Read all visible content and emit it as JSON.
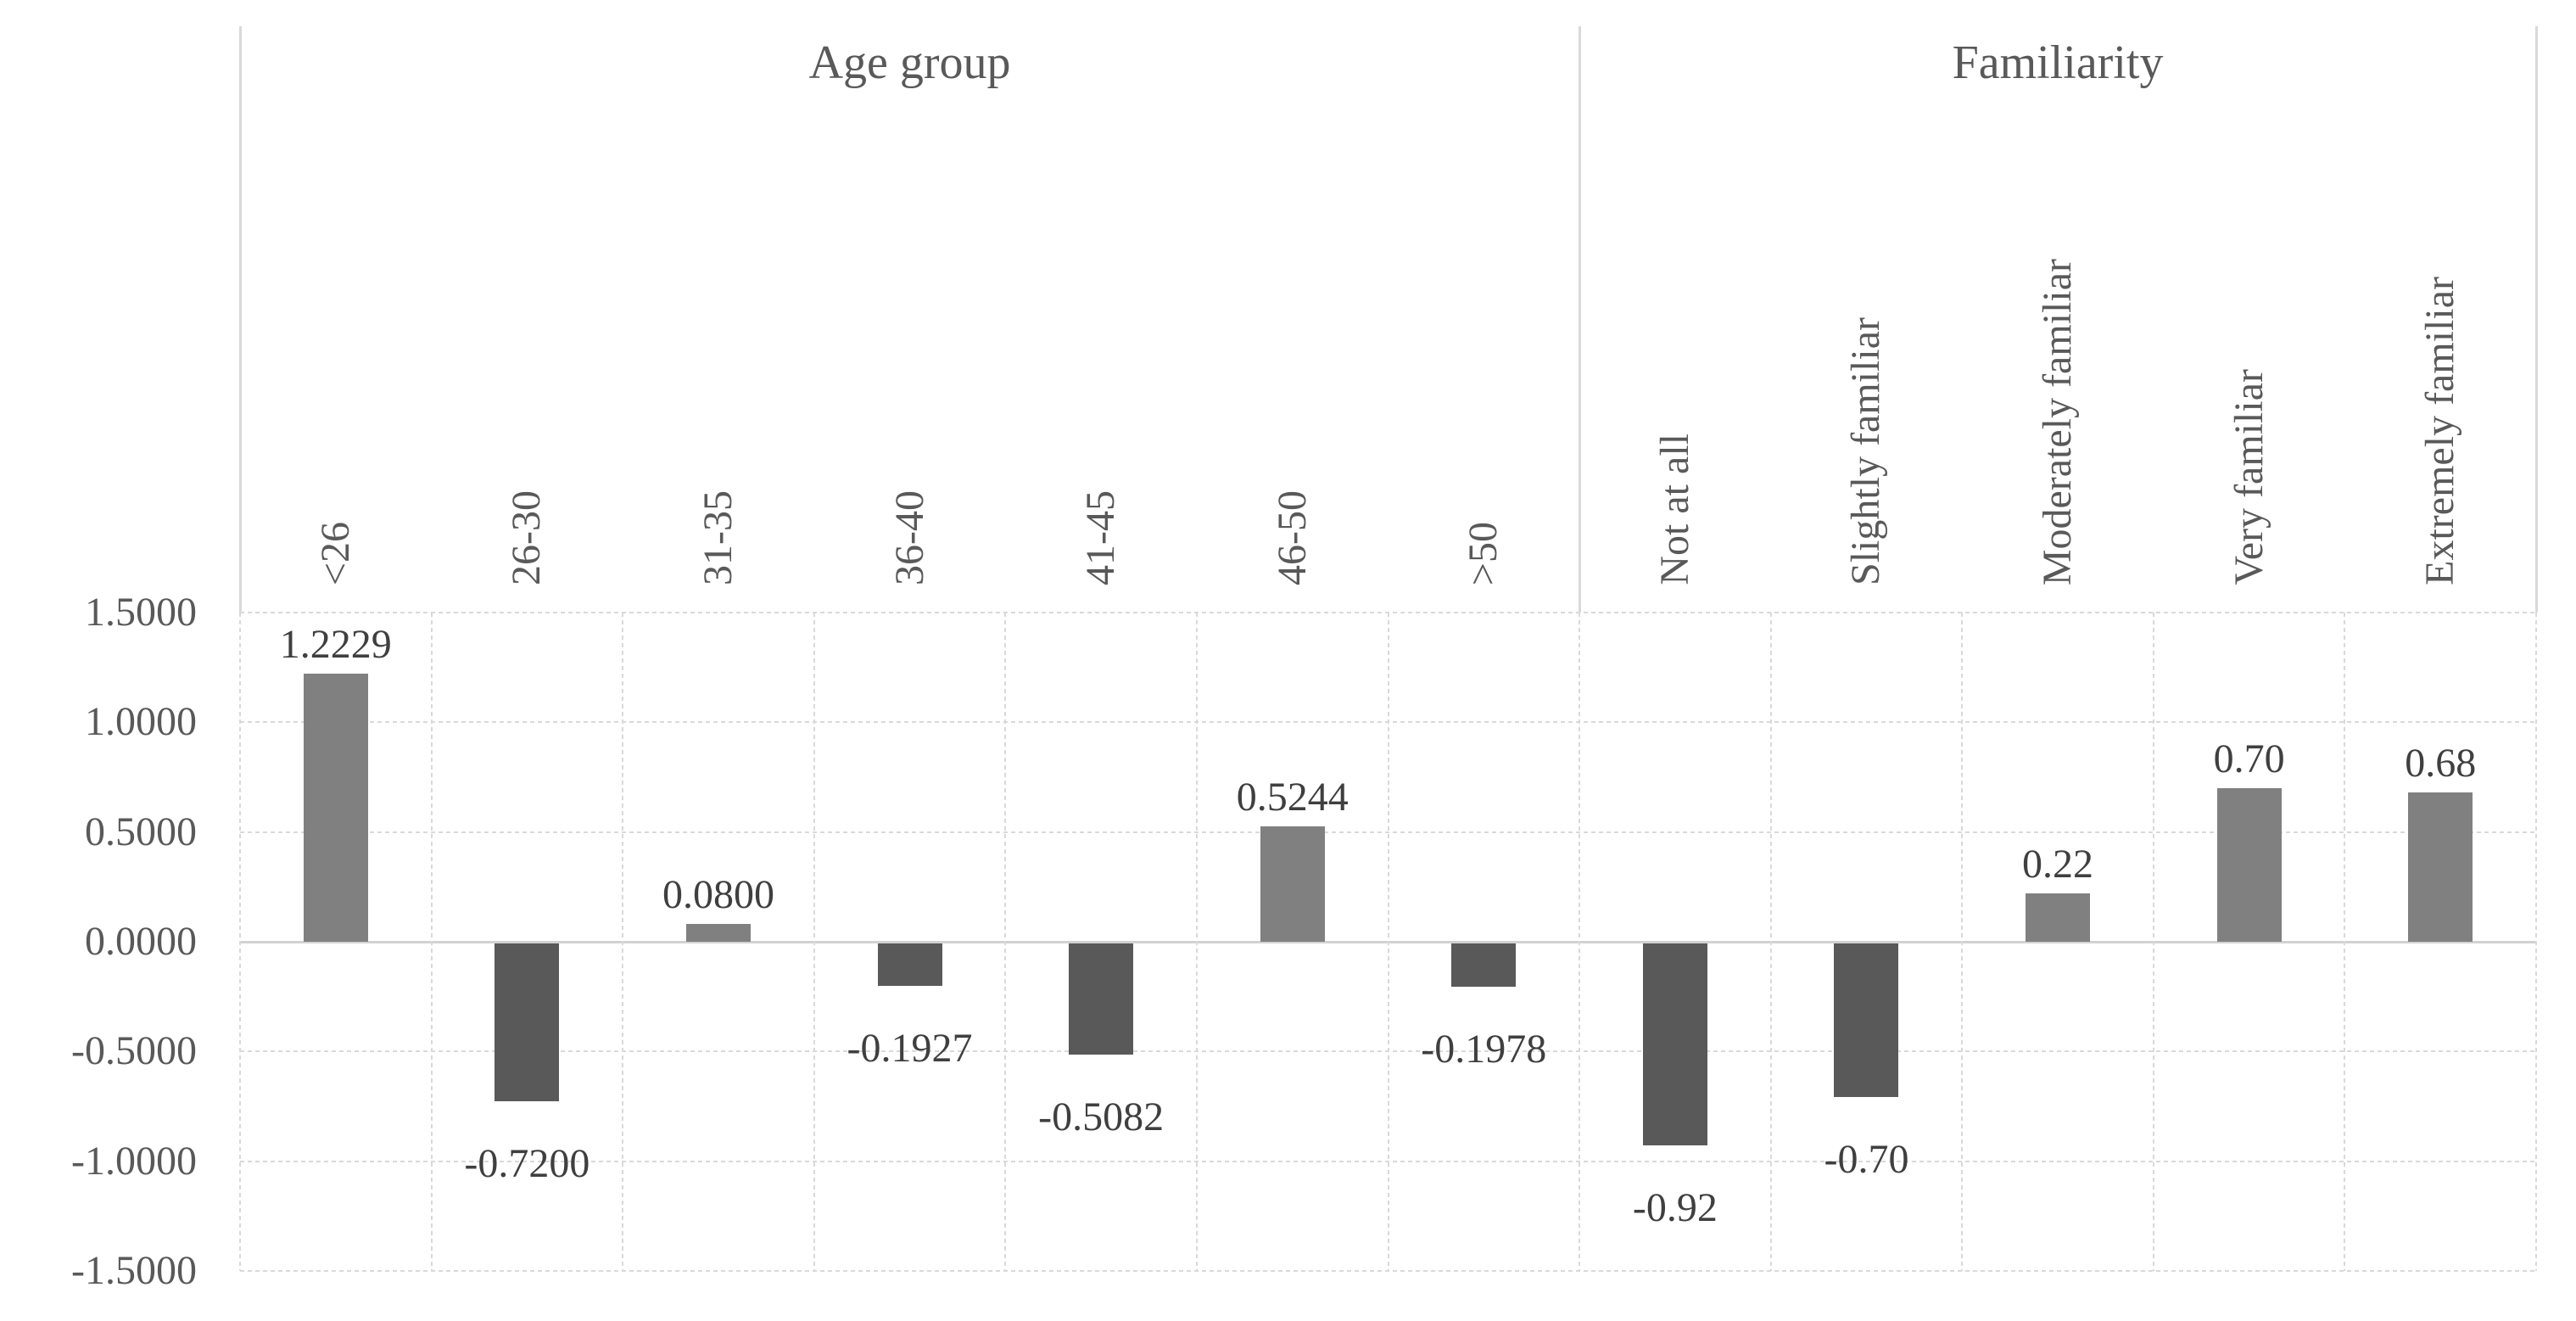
{
  "chart_data": {
    "type": "bar",
    "ylim": [
      -1.5,
      1.5
    ],
    "grid": true,
    "legend": false,
    "yticks": [
      {
        "value": 1.5,
        "label": "1.5000"
      },
      {
        "value": 1.0,
        "label": "1.0000"
      },
      {
        "value": 0.5,
        "label": "0.5000"
      },
      {
        "value": 0.0,
        "label": "0.0000"
      },
      {
        "value": -0.5,
        "label": "-0.5000"
      },
      {
        "value": -1.0,
        "label": "-1.0000"
      },
      {
        "value": -1.5,
        "label": "-1.5000"
      }
    ],
    "groups": [
      {
        "title": "Age group",
        "categories": [
          "<26",
          "26-30",
          "31-35",
          "36-40",
          "41-45",
          "46-50",
          ">50"
        ],
        "values": [
          1.2229,
          -0.72,
          0.08,
          -0.1927,
          -0.5082,
          0.5244,
          -0.1978
        ],
        "value_labels": [
          "1.2229",
          "-0.7200",
          "0.0800",
          "-0.1927",
          "-0.5082",
          "0.5244",
          "-0.1978"
        ]
      },
      {
        "title": "Familiarity",
        "categories": [
          "Not at all",
          "Slightly familiar",
          "Moderately familiar",
          "Very familiar",
          "Extremely familiar"
        ],
        "values": [
          -0.92,
          -0.7,
          0.22,
          0.7,
          0.68
        ],
        "value_labels": [
          "-0.92",
          "-0.70",
          "0.22",
          "0.70",
          "0.68"
        ]
      }
    ],
    "colors": {
      "positive_bar": "#808080",
      "negative_bar": "#595959",
      "gridline": "#d9d9d9",
      "zero_line": "#d2d2d2",
      "data_label_text": "#3f3f3f",
      "axis_text": "#595959",
      "title_text": "#595959",
      "background": "#ffffff"
    }
  }
}
